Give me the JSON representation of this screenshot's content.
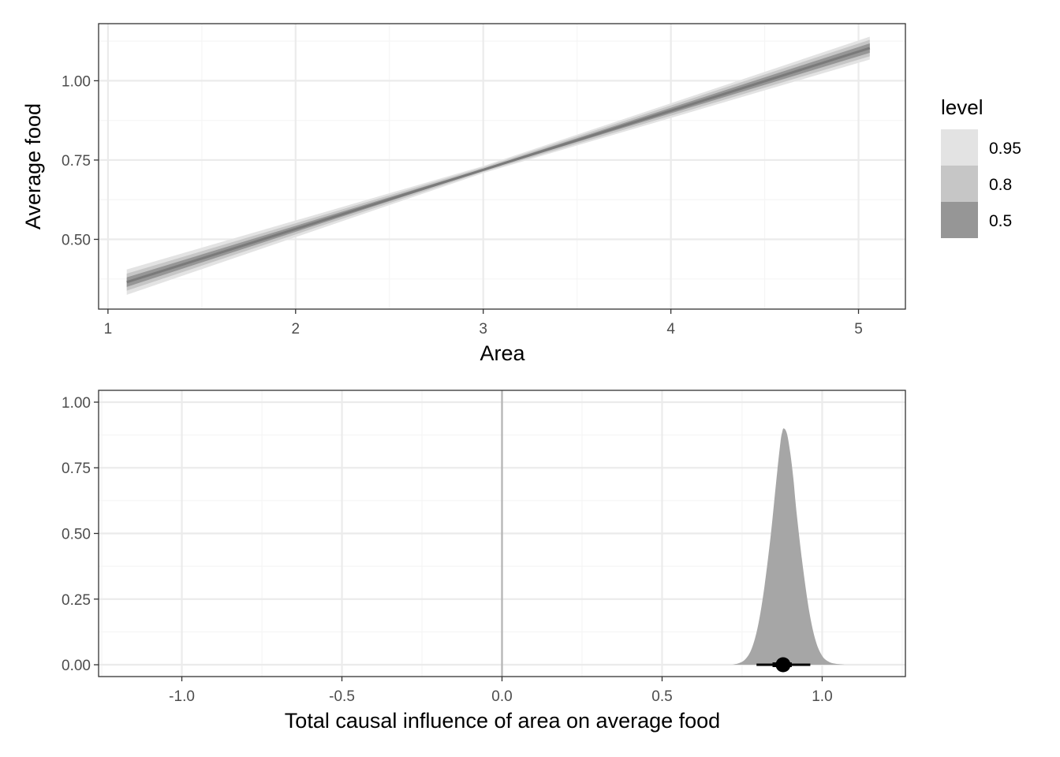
{
  "colors": {
    "grid_major": "#ebebeb",
    "grid_minor": "#f5f5f5",
    "panel_border": "#333333",
    "band_95": "#e3e3e3",
    "band_80": "#c6c6c6",
    "band_50": "#969696",
    "line": "#7a7a7a",
    "density": "#a6a6a6",
    "zero_line": "#b3b3b3",
    "point": "#000000"
  },
  "chart_data": [
    {
      "type": "area",
      "subtype": "lineribbon",
      "xlabel": "Area",
      "ylabel": "Average food",
      "xlim": [
        0.95,
        5.25
      ],
      "ylim": [
        0.28,
        1.18
      ],
      "x_ticks": [
        1,
        2,
        3,
        4,
        5
      ],
      "x_tick_labels": [
        "1",
        "2",
        "3",
        "4",
        "5"
      ],
      "y_ticks": [
        0.5,
        0.75,
        1.0
      ],
      "y_tick_labels": [
        "0.50",
        "0.75",
        "1.00"
      ],
      "grid": true,
      "legend": {
        "title": "level",
        "position": "right",
        "entries": [
          {
            "label": "0.95",
            "color": "#e3e3e3"
          },
          {
            "label": "0.8",
            "color": "#c6c6c6"
          },
          {
            "label": "0.5",
            "color": "#969696"
          }
        ]
      },
      "series": [
        {
          "level": "median",
          "x": [
            1.1,
            5.06
          ],
          "y": [
            0.365,
            1.103
          ]
        },
        {
          "level": "0.5",
          "x": [
            1.1,
            3.0,
            5.06
          ],
          "lower": [
            0.35,
            0.717,
            1.088
          ],
          "upper": [
            0.38,
            0.723,
            1.118
          ]
        },
        {
          "level": "0.8",
          "x": [
            1.1,
            3.0,
            5.06
          ],
          "lower": [
            0.338,
            0.713,
            1.077
          ],
          "upper": [
            0.392,
            0.727,
            1.129
          ]
        },
        {
          "level": "0.95",
          "x": [
            1.1,
            3.0,
            5.06
          ],
          "lower": [
            0.325,
            0.709,
            1.067
          ],
          "upper": [
            0.405,
            0.731,
            1.139
          ]
        }
      ]
    },
    {
      "type": "area",
      "subtype": "halfeye",
      "xlabel": "Total causal influence of area on average food",
      "ylabel": "",
      "xlim": [
        -1.26,
        1.26
      ],
      "ylim": [
        -0.045,
        1.045
      ],
      "x_ticks": [
        -1.0,
        -0.5,
        0.0,
        0.5,
        1.0
      ],
      "x_tick_labels": [
        "-1.0",
        "-0.5",
        "0.0",
        "0.5",
        "1.0"
      ],
      "y_ticks": [
        0.0,
        0.25,
        0.5,
        0.75,
        1.0
      ],
      "y_tick_labels": [
        "0.00",
        "0.25",
        "0.50",
        "0.75",
        "1.00"
      ],
      "grid": true,
      "reference_line_x": 0.0,
      "density": {
        "x": [
          0.72,
          0.74,
          0.76,
          0.78,
          0.8,
          0.82,
          0.84,
          0.85,
          0.86,
          0.87,
          0.875,
          0.88,
          0.89,
          0.9,
          0.91,
          0.92,
          0.94,
          0.96,
          0.98,
          1.0,
          1.02,
          1.04,
          1.07
        ],
        "y": [
          0.0,
          0.006,
          0.021,
          0.062,
          0.151,
          0.3,
          0.5,
          0.62,
          0.74,
          0.85,
          0.885,
          0.9,
          0.88,
          0.81,
          0.71,
          0.58,
          0.37,
          0.2,
          0.09,
          0.034,
          0.012,
          0.004,
          0.0
        ]
      },
      "point_interval": {
        "median": 0.878,
        "inner": [
          0.845,
          0.905
        ],
        "outer": [
          0.795,
          0.963
        ]
      }
    }
  ]
}
